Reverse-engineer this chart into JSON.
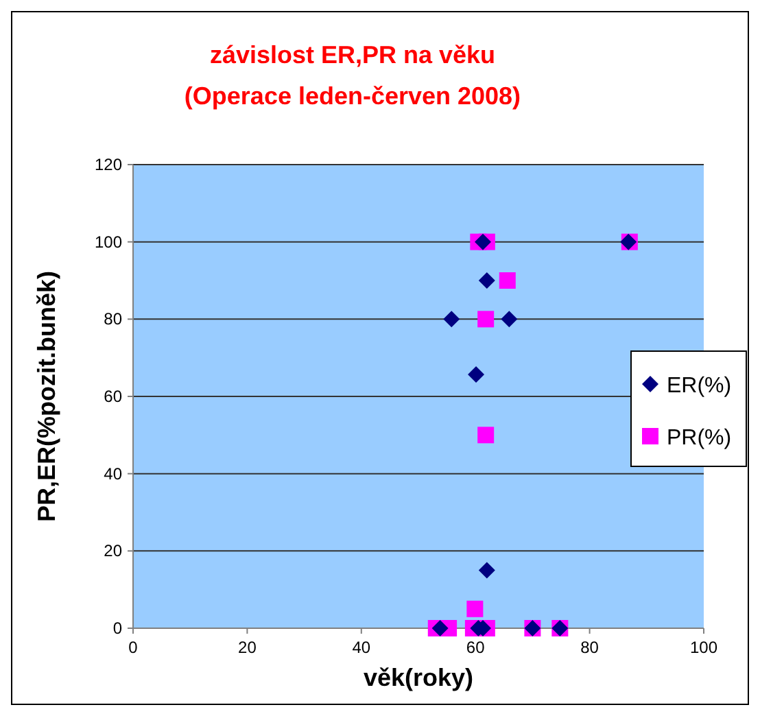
{
  "chart_data": {
    "type": "scatter",
    "title": "závislost ER,PR na věku",
    "subtitle": "(Operace leden-červen 2008)",
    "xlabel": "věk(roky)",
    "ylabel": "PR,ER(%pozit.buněk)",
    "xlim": [
      0,
      100
    ],
    "xticks": [
      0,
      20,
      40,
      60,
      80,
      100
    ],
    "ylim": [
      0,
      120
    ],
    "yticks": [
      0,
      20,
      40,
      60,
      80,
      100,
      120
    ],
    "grid": "y",
    "legend": "right",
    "series": [
      {
        "name": "ER(%)",
        "color": "#000080",
        "marker": "diamond",
        "x": [
          61.3,
          86.8,
          62,
          55.8,
          65.9,
          60.1,
          62,
          53.8,
          60.5,
          61.3,
          70,
          74.8
        ],
        "values": [
          100,
          100,
          90,
          80,
          80,
          65.7,
          15,
          0,
          0,
          0,
          0,
          0
        ]
      },
      {
        "name": "PR(%)",
        "color": "#ff00ff",
        "marker": "square",
        "x": [
          60.5,
          62,
          87,
          65.6,
          61.8,
          61.8,
          59.9,
          53.1,
          55.3,
          59.6,
          62,
          70,
          74.8
        ],
        "values": [
          100,
          100,
          100,
          90,
          80,
          50,
          5,
          0,
          0,
          0,
          0,
          0,
          0
        ]
      }
    ]
  }
}
